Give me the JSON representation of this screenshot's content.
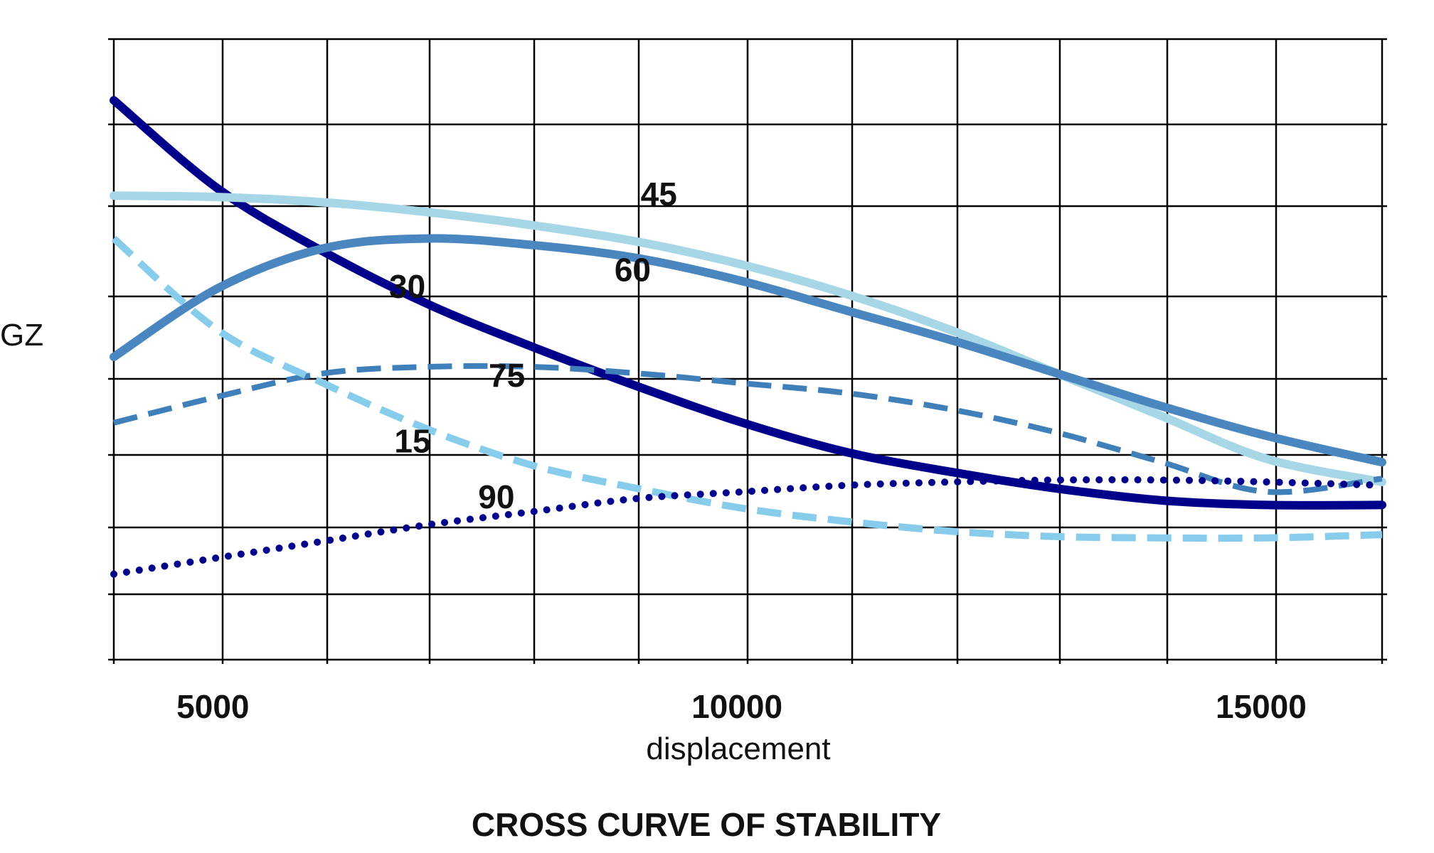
{
  "chart_data": {
    "type": "line",
    "title": "CROSS CURVE OF STABILITY",
    "xlabel": "displacement",
    "ylabel": "GZ",
    "xlim": [
      4000,
      16100
    ],
    "ylim": [
      0,
      9.43
    ],
    "x_ticks": [
      5000,
      10000,
      15000
    ],
    "grid": true,
    "series": [
      {
        "name": "30",
        "style": "solid",
        "color": "#00008b",
        "width": 12,
        "x": [
          4000,
          5000,
          6000,
          7000,
          8000,
          9000,
          10000,
          11000,
          12000,
          13000,
          14000,
          15000,
          16100
        ],
        "y": [
          8.5,
          7.15,
          6.2,
          5.4,
          4.75,
          4.15,
          3.6,
          3.15,
          2.85,
          2.6,
          2.42,
          2.35,
          2.35
        ]
      },
      {
        "name": "45",
        "style": "solid",
        "color": "#a7d7e6",
        "width": 12,
        "x": [
          4000,
          5000,
          6000,
          7000,
          8000,
          9000,
          10000,
          11000,
          12000,
          13000,
          14000,
          15000,
          16100
        ],
        "y": [
          7.05,
          7.03,
          6.95,
          6.8,
          6.6,
          6.35,
          6.0,
          5.55,
          5.0,
          4.35,
          3.7,
          3.05,
          2.7
        ]
      },
      {
        "name": "60",
        "style": "solid",
        "color": "#4a86c0",
        "width": 12,
        "x": [
          4000,
          5000,
          6000,
          7000,
          8000,
          9000,
          10000,
          11000,
          12000,
          13000,
          14000,
          15000,
          16100
        ],
        "y": [
          4.6,
          5.65,
          6.25,
          6.4,
          6.3,
          6.1,
          5.75,
          5.3,
          4.85,
          4.35,
          3.85,
          3.4,
          3.0
        ]
      },
      {
        "name": "75",
        "style": "dashed",
        "color": "#3f7fba",
        "width": 8,
        "x": [
          4000,
          5000,
          6000,
          7000,
          8000,
          9000,
          10000,
          11000,
          12000,
          13000,
          14000,
          15000,
          16100
        ],
        "y": [
          3.6,
          4.0,
          4.35,
          4.45,
          4.45,
          4.35,
          4.2,
          4.05,
          3.8,
          3.45,
          3.0,
          2.55,
          2.75
        ]
      },
      {
        "name": "15",
        "style": "dashed",
        "color": "#87cdeb",
        "width": 10,
        "x": [
          4000,
          5000,
          6000,
          7000,
          8000,
          9000,
          10000,
          11000,
          12000,
          13000,
          14000,
          15000,
          16100
        ],
        "y": [
          6.4,
          5.0,
          4.2,
          3.5,
          2.95,
          2.6,
          2.3,
          2.1,
          1.95,
          1.87,
          1.85,
          1.85,
          1.9
        ]
      },
      {
        "name": "90",
        "style": "dotted",
        "color": "#00008b",
        "width": 10,
        "x": [
          4000,
          5000,
          6000,
          7000,
          8000,
          9000,
          10000,
          11000,
          12000,
          13000,
          14000,
          15000,
          16100
        ],
        "y": [
          1.3,
          1.55,
          1.8,
          2.05,
          2.25,
          2.45,
          2.55,
          2.65,
          2.7,
          2.73,
          2.73,
          2.7,
          2.65
        ]
      }
    ],
    "curve_labels": [
      {
        "text": "45",
        "x": 9200,
        "y": 6.9
      },
      {
        "text": "30",
        "x": 6800,
        "y": 5.5
      },
      {
        "text": "60",
        "x": 8950,
        "y": 5.75
      },
      {
        "text": "75",
        "x": 7750,
        "y": 4.15
      },
      {
        "text": "15",
        "x": 6850,
        "y": 3.15
      },
      {
        "text": "90",
        "x": 7650,
        "y": 2.3
      }
    ]
  }
}
